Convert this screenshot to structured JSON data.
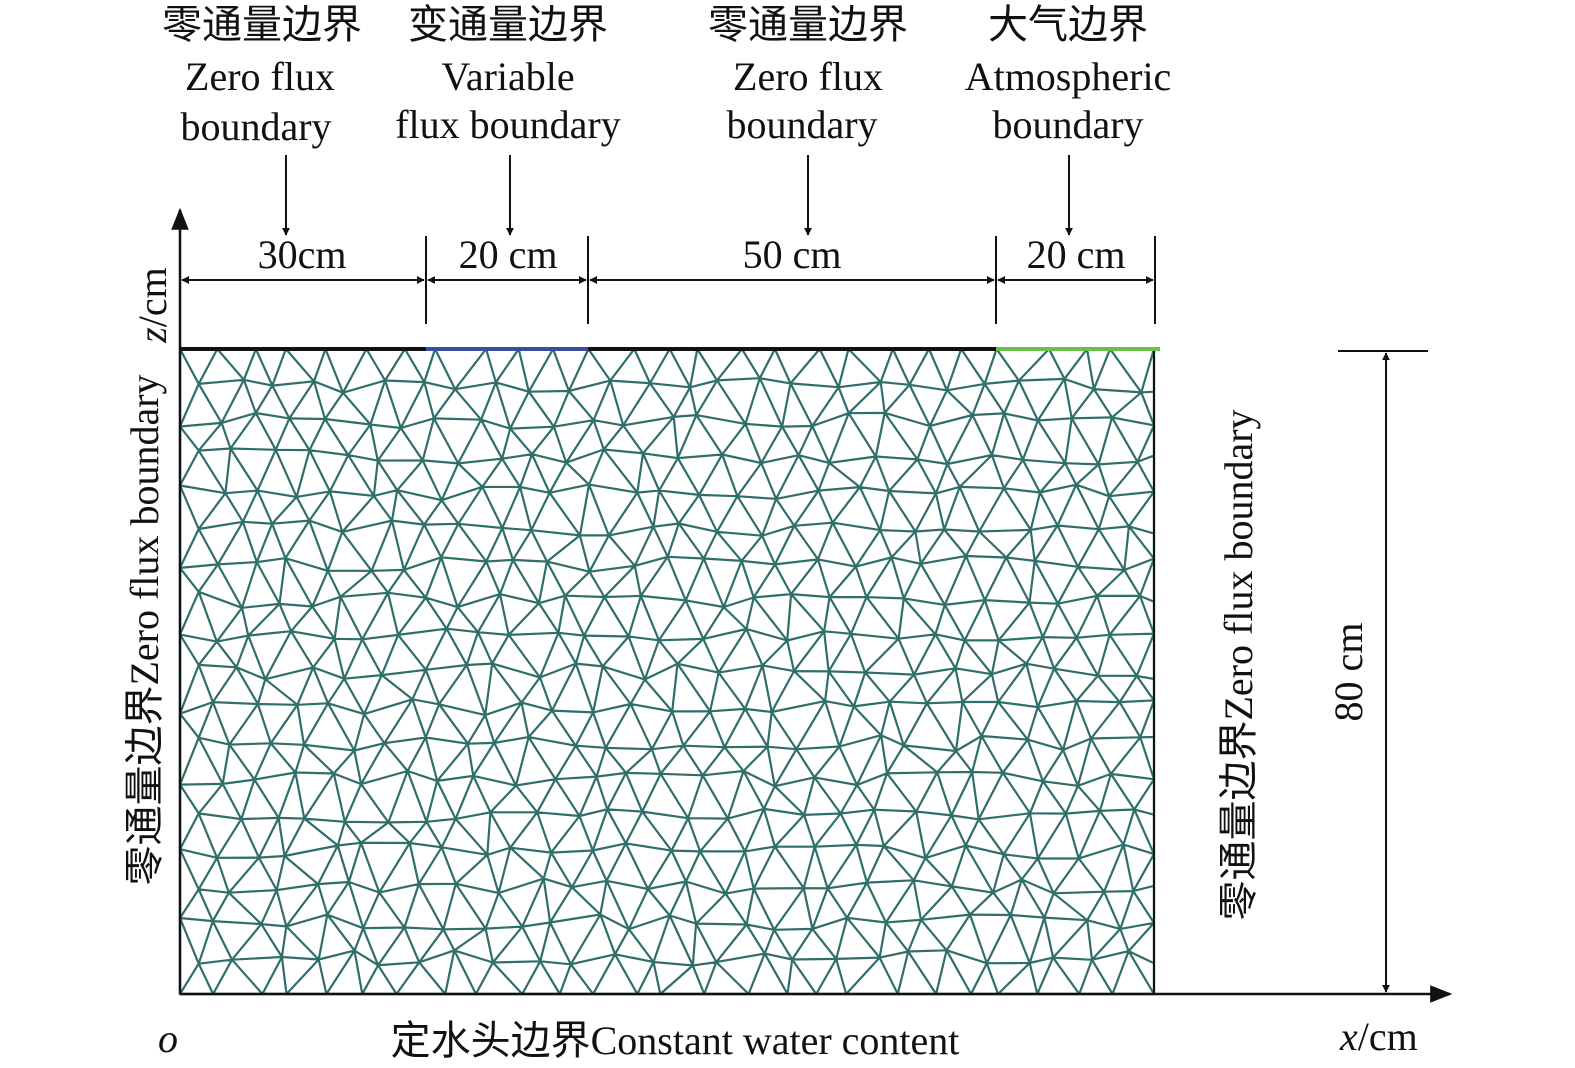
{
  "top_labels": [
    {
      "cn": "零通量边界",
      "en1": "Zero flux",
      "en2": "boundary"
    },
    {
      "cn": "变通量边界",
      "en1": "Variable",
      "en2": "flux boundary"
    },
    {
      "cn": "零通量边界",
      "en1": "Zero flux",
      "en2": "boundary"
    },
    {
      "cn": "大气边界",
      "en1": "Atmospheric",
      "en2": "boundary"
    }
  ],
  "segments": [
    "30cm",
    "20 cm",
    "50 cm",
    "20 cm"
  ],
  "left_boundary": "零通量边界Zero flux boundary",
  "right_boundary": "零通量边界Zero flux boundary",
  "bottom_boundary": "定水头边界Constant water content",
  "height_label": "80 cm",
  "axes": {
    "origin": "o",
    "x_var": "x",
    "x_unit": "/cm",
    "z_var": "z",
    "z_unit": "/cm"
  },
  "colors": {
    "mesh": "#2f6e6b",
    "zero_flux": "#111111",
    "variable_flux": "#3a4f9c",
    "atmospheric": "#6cbf4a"
  }
}
